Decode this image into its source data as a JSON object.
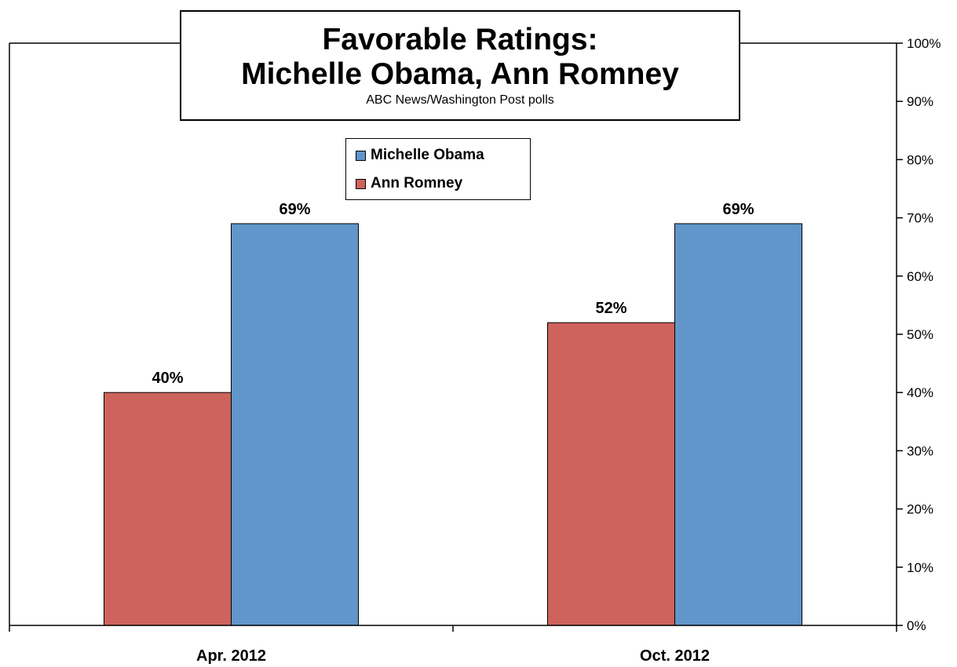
{
  "chart_data": {
    "type": "bar",
    "title": "Favorable Ratings:",
    "title_line2": "Michelle Obama,  Ann Romney",
    "subtitle": "ABC News/Washington Post polls",
    "categories": [
      "Apr. 2012",
      "Oct. 2012"
    ],
    "series": [
      {
        "name": "Ann Romney",
        "values": [
          40,
          52
        ],
        "labels": [
          "40%",
          "52%"
        ],
        "color": "#cd635c"
      },
      {
        "name": "Michelle Obama",
        "values": [
          69,
          69
        ],
        "labels": [
          "69%",
          "69%"
        ],
        "color": "#6196ca"
      }
    ],
    "legend_order": [
      "Michelle Obama",
      "Ann Romney"
    ],
    "legend_position": "top-center",
    "y_axis_position": "right",
    "ylim": [
      0,
      100
    ],
    "yticks": [
      0,
      10,
      20,
      30,
      40,
      50,
      60,
      70,
      80,
      90,
      100
    ],
    "ytick_labels": [
      "0%",
      "10%",
      "20%",
      "30%",
      "40%",
      "50%",
      "60%",
      "70%",
      "80%",
      "90%",
      "100%"
    ],
    "grid": false
  }
}
